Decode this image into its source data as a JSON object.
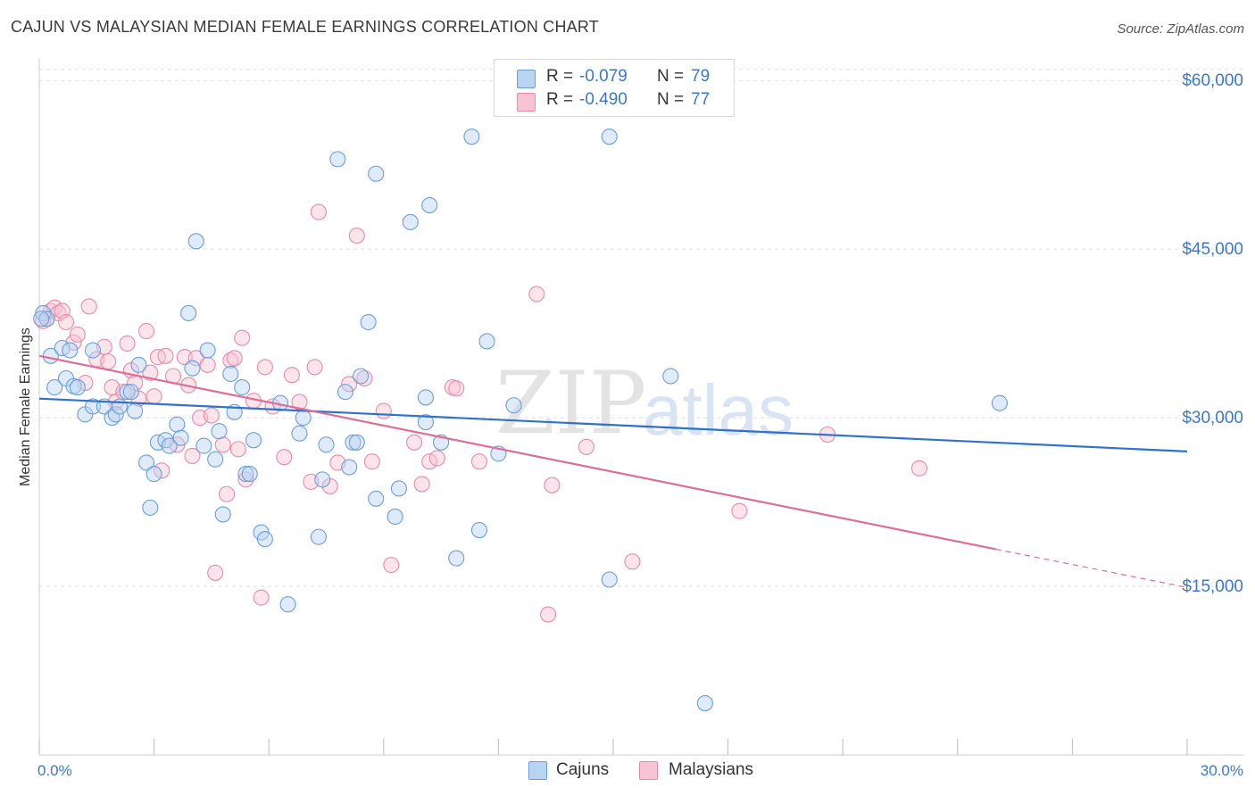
{
  "header": {
    "title": "CAJUN VS MALAYSIAN MEDIAN FEMALE EARNINGS CORRELATION CHART",
    "source": "Source: ZipAtlas.com"
  },
  "watermark": {
    "zip": "ZIP",
    "atlas": "atlas"
  },
  "legend_top": {
    "rows": [
      {
        "r_label": "R =",
        "r_value": "-0.079",
        "n_label": "N =",
        "n_value": "79"
      },
      {
        "r_label": "R =",
        "r_value": "-0.490",
        "n_label": "N =",
        "n_value": "77"
      }
    ]
  },
  "legend_bottom": {
    "cajuns": "Cajuns",
    "malaysians": "Malaysians"
  },
  "colors": {
    "cajun_fill": "#b9d3f2",
    "cajun_stroke": "#6a9ed9",
    "cajun_line": "#2f72cc",
    "malay_fill": "#f8c3d3",
    "malay_stroke": "#e88aaa",
    "malay_line": "#e06d96",
    "grid": "#dedede",
    "axis_text": "#3b78c9"
  },
  "chart_data": {
    "type": "scatter",
    "title": "CAJUN VS MALAYSIAN MEDIAN FEMALE EARNINGS CORRELATION CHART",
    "xlabel": "",
    "ylabel": "Median Female Earnings",
    "xlim": [
      0,
      30
    ],
    "ylim": [
      0,
      62000
    ],
    "x_tick_labels": [
      "0.0%",
      "30.0%"
    ],
    "y_ticks": [
      15000,
      30000,
      45000,
      60000
    ],
    "y_tick_labels": [
      "$15,000",
      "$30,000",
      "$45,000",
      "$60,000"
    ],
    "grid": "horizontal dashed",
    "legend": "top-center",
    "series": [
      {
        "name": "Cajuns",
        "r": -0.079,
        "n": 79,
        "trend": {
          "x": [
            0,
            30
          ],
          "y": [
            31700,
            27000
          ]
        },
        "points": [
          [
            0.1,
            39300
          ],
          [
            0.2,
            38800
          ],
          [
            0.3,
            35500
          ],
          [
            0.4,
            32700
          ],
          [
            0.6,
            36200
          ],
          [
            0.7,
            33500
          ],
          [
            0.8,
            36000
          ],
          [
            0.9,
            32800
          ],
          [
            1.0,
            32700
          ],
          [
            1.2,
            30300
          ],
          [
            1.4,
            31000
          ],
          [
            1.4,
            36000
          ],
          [
            1.7,
            31000
          ],
          [
            1.9,
            30000
          ],
          [
            2.0,
            30300
          ],
          [
            2.1,
            31000
          ],
          [
            2.3,
            32300
          ],
          [
            2.4,
            32300
          ],
          [
            2.5,
            30600
          ],
          [
            2.6,
            34700
          ],
          [
            2.8,
            26000
          ],
          [
            2.9,
            22000
          ],
          [
            3.0,
            25000
          ],
          [
            3.1,
            27800
          ],
          [
            3.3,
            28000
          ],
          [
            3.4,
            27500
          ],
          [
            3.6,
            29400
          ],
          [
            3.7,
            28200
          ],
          [
            3.9,
            39300
          ],
          [
            4.0,
            34400
          ],
          [
            4.1,
            45700
          ],
          [
            4.3,
            27500
          ],
          [
            4.4,
            36000
          ],
          [
            4.6,
            26300
          ],
          [
            4.7,
            28800
          ],
          [
            4.8,
            21400
          ],
          [
            5.0,
            33900
          ],
          [
            5.1,
            30500
          ],
          [
            5.3,
            32700
          ],
          [
            5.4,
            25000
          ],
          [
            5.5,
            25000
          ],
          [
            5.6,
            28000
          ],
          [
            5.8,
            19800
          ],
          [
            5.9,
            19200
          ],
          [
            6.3,
            31300
          ],
          [
            6.5,
            13400
          ],
          [
            6.8,
            28600
          ],
          [
            6.9,
            30000
          ],
          [
            7.3,
            19400
          ],
          [
            7.4,
            24500
          ],
          [
            7.5,
            27600
          ],
          [
            7.8,
            53000
          ],
          [
            8.0,
            32300
          ],
          [
            8.1,
            25600
          ],
          [
            8.2,
            27800
          ],
          [
            8.3,
            27800
          ],
          [
            8.4,
            33700
          ],
          [
            8.6,
            38500
          ],
          [
            8.8,
            22800
          ],
          [
            8.8,
            51700
          ],
          [
            9.3,
            21200
          ],
          [
            9.4,
            23700
          ],
          [
            9.7,
            47400
          ],
          [
            10.1,
            31800
          ],
          [
            10.1,
            29600
          ],
          [
            10.2,
            48900
          ],
          [
            10.5,
            27800
          ],
          [
            10.9,
            17500
          ],
          [
            11.3,
            55000
          ],
          [
            11.5,
            20000
          ],
          [
            11.7,
            36800
          ],
          [
            12.0,
            26800
          ],
          [
            12.4,
            31100
          ],
          [
            14.9,
            15600
          ],
          [
            14.9,
            55000
          ],
          [
            16.5,
            33700
          ],
          [
            17.4,
            4600
          ],
          [
            25.1,
            31300
          ],
          [
            0.05,
            38800
          ]
        ]
      },
      {
        "name": "Malaysians",
        "r": -0.49,
        "n": 77,
        "trend": {
          "x": [
            0,
            25
          ],
          "y": [
            35500,
            18300
          ]
        },
        "trend_dashed": {
          "x": [
            25,
            30
          ],
          "y": [
            18300,
            14900
          ]
        },
        "points": [
          [
            0.1,
            38600
          ],
          [
            0.2,
            38800
          ],
          [
            0.3,
            39500
          ],
          [
            0.4,
            39800
          ],
          [
            0.5,
            39300
          ],
          [
            0.6,
            39500
          ],
          [
            0.7,
            38500
          ],
          [
            0.9,
            36700
          ],
          [
            1.0,
            37400
          ],
          [
            1.2,
            33100
          ],
          [
            1.3,
            39900
          ],
          [
            1.5,
            35200
          ],
          [
            1.7,
            36300
          ],
          [
            1.8,
            35000
          ],
          [
            1.9,
            32700
          ],
          [
            2.0,
            31400
          ],
          [
            2.2,
            32300
          ],
          [
            2.3,
            36600
          ],
          [
            2.4,
            34200
          ],
          [
            2.5,
            33100
          ],
          [
            2.6,
            31700
          ],
          [
            2.8,
            37700
          ],
          [
            2.9,
            34000
          ],
          [
            3.0,
            31900
          ],
          [
            3.1,
            35400
          ],
          [
            3.2,
            25300
          ],
          [
            3.3,
            35500
          ],
          [
            3.5,
            33700
          ],
          [
            3.6,
            27600
          ],
          [
            3.8,
            35400
          ],
          [
            3.9,
            32900
          ],
          [
            4.0,
            26600
          ],
          [
            4.1,
            35300
          ],
          [
            4.2,
            30000
          ],
          [
            4.4,
            34700
          ],
          [
            4.5,
            30200
          ],
          [
            4.6,
            16200
          ],
          [
            4.8,
            27600
          ],
          [
            4.9,
            23200
          ],
          [
            5.0,
            35100
          ],
          [
            5.1,
            35300
          ],
          [
            5.2,
            27200
          ],
          [
            5.3,
            37100
          ],
          [
            5.4,
            24500
          ],
          [
            5.6,
            31500
          ],
          [
            5.8,
            14000
          ],
          [
            5.9,
            34500
          ],
          [
            6.1,
            31000
          ],
          [
            6.4,
            26500
          ],
          [
            6.6,
            33800
          ],
          [
            6.8,
            31400
          ],
          [
            7.1,
            24300
          ],
          [
            7.2,
            34500
          ],
          [
            7.3,
            48300
          ],
          [
            7.6,
            23900
          ],
          [
            7.8,
            26000
          ],
          [
            8.1,
            33000
          ],
          [
            8.3,
            46200
          ],
          [
            8.5,
            33500
          ],
          [
            8.7,
            26100
          ],
          [
            9.0,
            30600
          ],
          [
            9.2,
            16900
          ],
          [
            9.8,
            27800
          ],
          [
            10.0,
            24100
          ],
          [
            10.2,
            26100
          ],
          [
            10.4,
            26400
          ],
          [
            10.8,
            32700
          ],
          [
            10.9,
            32600
          ],
          [
            11.5,
            26100
          ],
          [
            13.0,
            41000
          ],
          [
            13.3,
            12500
          ],
          [
            13.4,
            24000
          ],
          [
            14.3,
            27400
          ],
          [
            15.5,
            17200
          ],
          [
            18.3,
            21700
          ],
          [
            20.6,
            28500
          ],
          [
            23.0,
            25500
          ]
        ]
      }
    ]
  }
}
